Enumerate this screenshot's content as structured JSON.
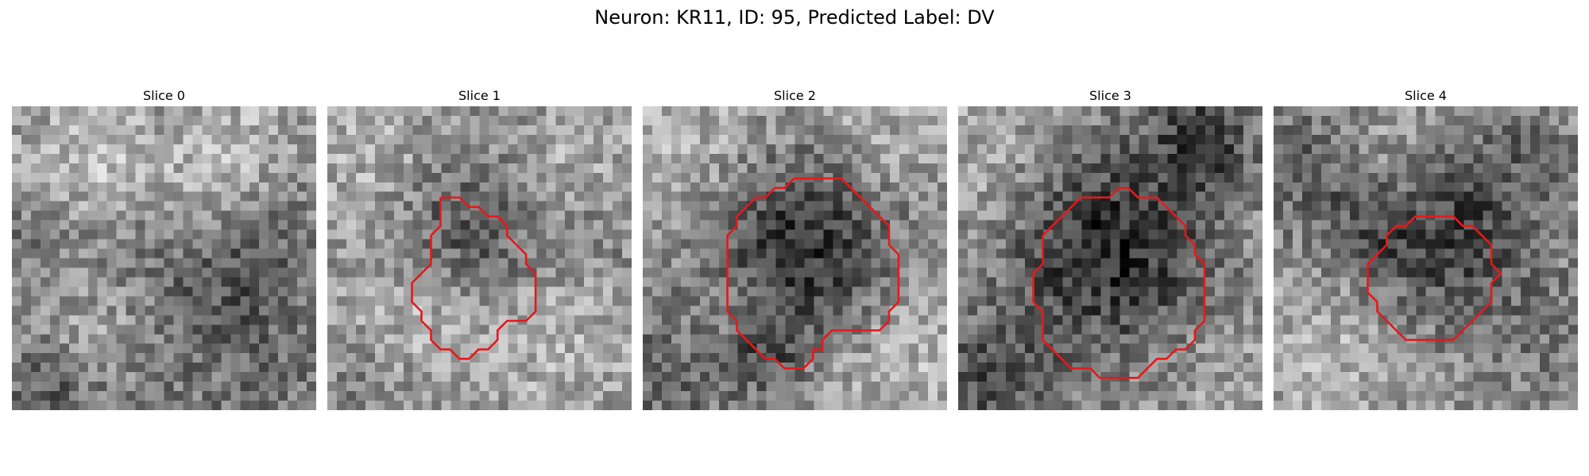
{
  "figure": {
    "title": "Neuron: KR11, ID: 95, Predicted Label: DV"
  },
  "panels": [
    {
      "title": "Slice 0",
      "has_contour": false
    },
    {
      "title": "Slice 1",
      "has_contour": true
    },
    {
      "title": "Slice 2",
      "has_contour": true
    },
    {
      "title": "Slice 3",
      "has_contour": true
    },
    {
      "title": "Slice 4",
      "has_contour": true
    }
  ],
  "colors": {
    "contour": "#e41a1c",
    "image_colormap": "gray"
  }
}
